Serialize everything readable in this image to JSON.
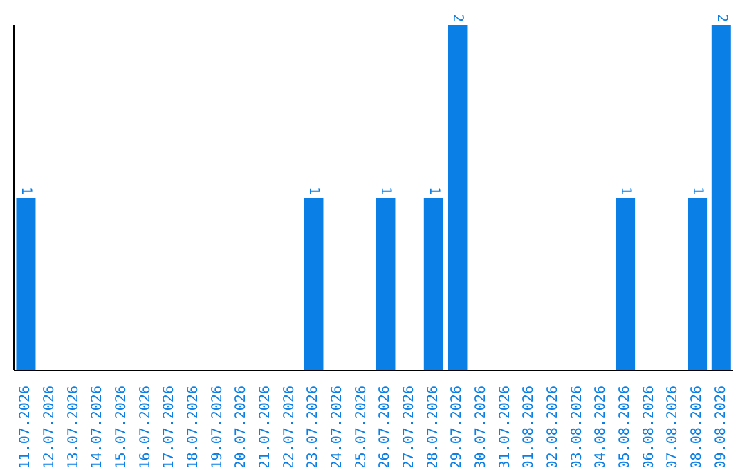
{
  "chart_data": {
    "type": "bar",
    "categories": [
      "11.07.2026",
      "12.07.2026",
      "13.07.2026",
      "14.07.2026",
      "15.07.2026",
      "16.07.2026",
      "17.07.2026",
      "18.07.2026",
      "19.07.2026",
      "20.07.2026",
      "21.07.2026",
      "22.07.2026",
      "23.07.2026",
      "24.07.2026",
      "25.07.2026",
      "26.07.2026",
      "27.07.2026",
      "28.07.2026",
      "29.07.2026",
      "30.07.2026",
      "31.07.2026",
      "01.08.2026",
      "02.08.2026",
      "03.08.2026",
      "04.08.2026",
      "05.08.2026",
      "06.08.2026",
      "07.08.2026",
      "08.08.2026",
      "09.08.2026"
    ],
    "values": [
      1,
      0,
      0,
      0,
      0,
      0,
      0,
      0,
      0,
      0,
      0,
      0,
      1,
      0,
      0,
      1,
      0,
      1,
      2,
      0,
      0,
      0,
      0,
      0,
      0,
      1,
      0,
      0,
      1,
      2
    ],
    "value_labels": [
      "1",
      null,
      null,
      null,
      null,
      null,
      null,
      null,
      null,
      null,
      null,
      null,
      "1",
      null,
      null,
      "1",
      null,
      "1",
      "2",
      null,
      null,
      null,
      null,
      null,
      null,
      "1",
      null,
      null,
      "1",
      "2"
    ],
    "color": "#0a7fe6",
    "ylim": [
      0,
      2
    ],
    "tick_labels": "x",
    "grid": false,
    "legend": false
  }
}
